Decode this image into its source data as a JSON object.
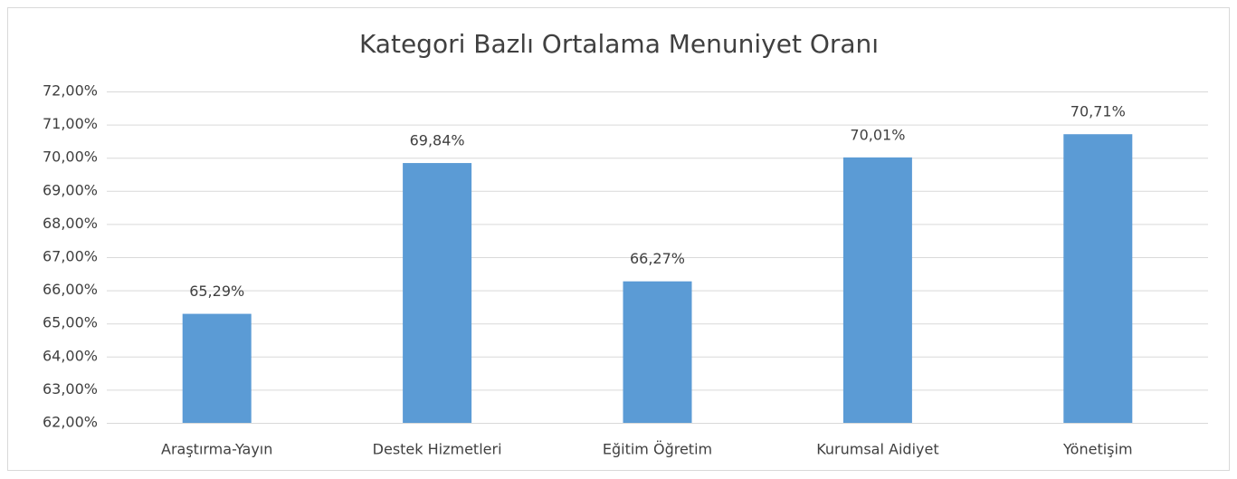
{
  "chart_data": {
    "type": "bar",
    "title": "Kategori Bazlı Ortalama Menuniyet Oranı",
    "categories": [
      "Araştırma-Yayın",
      "Destek Hizmetleri",
      "Eğitim Öğretim",
      "Kurumsal Aidiyet",
      "Yönetişim"
    ],
    "values": [
      65.29,
      69.84,
      66.27,
      70.01,
      70.71
    ],
    "value_labels": [
      "65,29%",
      "69,84%",
      "66,27%",
      "70,01%",
      "70,71%"
    ],
    "color": "#5b9bd5",
    "ylim": [
      62,
      72
    ],
    "yticks": [
      {
        "value": 62,
        "label": "62,00%"
      },
      {
        "value": 63,
        "label": "63,00%"
      },
      {
        "value": 64,
        "label": "64,00%"
      },
      {
        "value": 65,
        "label": "65,00%"
      },
      {
        "value": 66,
        "label": "66,00%"
      },
      {
        "value": 67,
        "label": "67,00%"
      },
      {
        "value": 68,
        "label": "68,00%"
      },
      {
        "value": 69,
        "label": "69,00%"
      },
      {
        "value": 70,
        "label": "70,00%"
      },
      {
        "value": 71,
        "label": "71,00%"
      },
      {
        "value": 72,
        "label": "72,00%"
      }
    ],
    "grid": true
  }
}
